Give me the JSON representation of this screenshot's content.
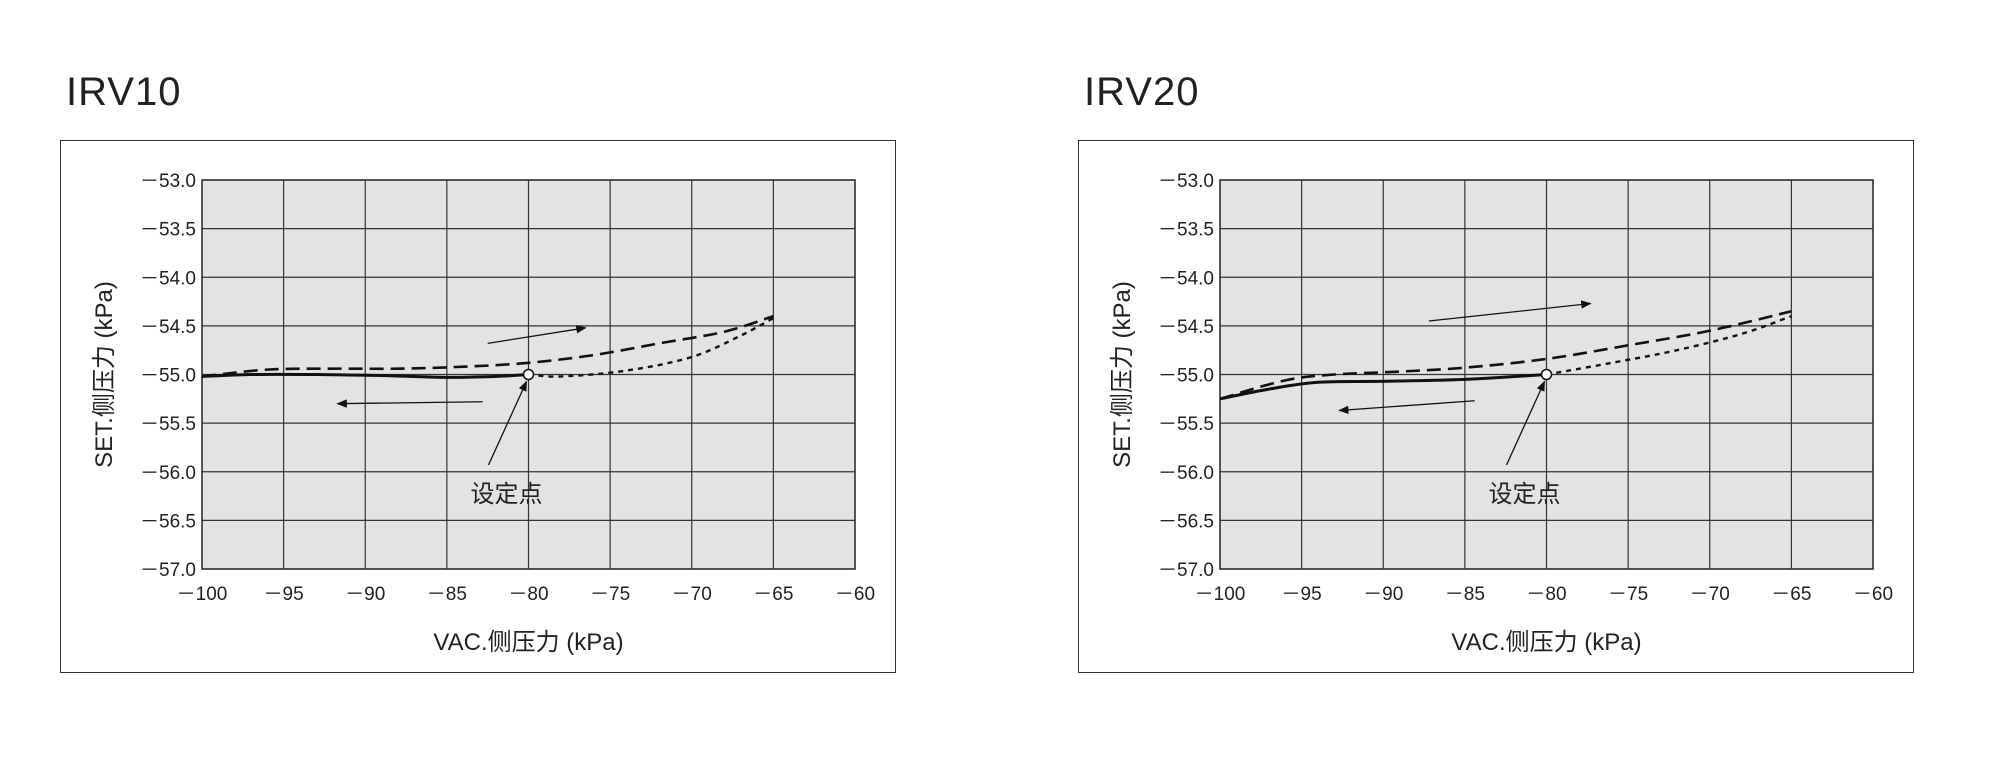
{
  "chart_data": [
    {
      "type": "line",
      "title": "IRV10",
      "xlabel": "VAC.侧压力 (kPa)",
      "ylabel": "SET.侧压力 (kPa)",
      "xlim": [
        -100,
        -60
      ],
      "ylim": [
        -57.0,
        -53.0
      ],
      "x_ticks": [
        "－100",
        "－95",
        "－90",
        "－85",
        "－80",
        "－75",
        "－70",
        "－65",
        "－60"
      ],
      "y_ticks": [
        "－53.0",
        "－53.5",
        "－54.0",
        "－54.5",
        "－55.0",
        "－55.5",
        "－56.0",
        "－56.5",
        "－57.0"
      ],
      "grid": true,
      "series": [
        {
          "style": "solid",
          "points": [
            [
              -100,
              -55.02
            ],
            [
              -97,
              -55.0
            ],
            [
              -93,
              -55.0
            ],
            [
              -89,
              -55.01
            ],
            [
              -85,
              -55.03
            ],
            [
              -82,
              -55.02
            ],
            [
              -80,
              -55.0
            ]
          ]
        },
        {
          "style": "dashed",
          "points": [
            [
              -100,
              -55.02
            ],
            [
              -96,
              -54.95
            ],
            [
              -92,
              -54.94
            ],
            [
              -88,
              -54.94
            ],
            [
              -84,
              -54.92
            ],
            [
              -80,
              -54.88
            ],
            [
              -76,
              -54.8
            ],
            [
              -72,
              -54.68
            ],
            [
              -68,
              -54.56
            ],
            [
              -65,
              -54.4
            ]
          ]
        },
        {
          "style": "dotted",
          "points": [
            [
              -80,
              -55.0
            ],
            [
              -78,
              -55.02
            ],
            [
              -74,
              -54.96
            ],
            [
              -70,
              -54.82
            ],
            [
              -67,
              -54.6
            ],
            [
              -65,
              -54.42
            ]
          ]
        }
      ],
      "annotations": {
        "setpoint": {
          "x": -80,
          "y": -55.0,
          "label": "设定点"
        },
        "arrow_increasing": {
          "from": [
            -82.5,
            -54.68
          ],
          "to": [
            -76.5,
            -54.52
          ]
        },
        "arrow_decreasing": {
          "from": [
            -82.8,
            -55.28
          ],
          "to": [
            -91.7,
            -55.3
          ]
        }
      }
    },
    {
      "type": "line",
      "title": "IRV20",
      "xlabel": "VAC.侧压力 (kPa)",
      "ylabel": "SET.侧压力 (kPa)",
      "xlim": [
        -100,
        -60
      ],
      "ylim": [
        -57.0,
        -53.0
      ],
      "x_ticks": [
        "－100",
        "－95",
        "－90",
        "－85",
        "－80",
        "－75",
        "－70",
        "－65",
        "－60"
      ],
      "y_ticks": [
        "－53.0",
        "－53.5",
        "－54.0",
        "－54.5",
        "－55.0",
        "－55.5",
        "－56.0",
        "－56.5",
        "－57.0"
      ],
      "grid": true,
      "series": [
        {
          "style": "solid",
          "points": [
            [
              -100,
              -55.25
            ],
            [
              -97,
              -55.15
            ],
            [
              -94,
              -55.08
            ],
            [
              -90,
              -55.07
            ],
            [
              -85,
              -55.05
            ],
            [
              -80,
              -55.0
            ]
          ]
        },
        {
          "style": "dashed",
          "points": [
            [
              -100,
              -55.25
            ],
            [
              -96,
              -55.06
            ],
            [
              -93,
              -55.0
            ],
            [
              -89,
              -54.97
            ],
            [
              -85,
              -54.93
            ],
            [
              -80,
              -54.84
            ],
            [
              -75,
              -54.7
            ],
            [
              -70,
              -54.55
            ],
            [
              -65,
              -54.35
            ]
          ]
        },
        {
          "style": "dotted",
          "points": [
            [
              -80,
              -55.0
            ],
            [
              -76,
              -54.88
            ],
            [
              -72,
              -54.75
            ],
            [
              -68,
              -54.58
            ],
            [
              -65,
              -54.4
            ]
          ]
        }
      ],
      "annotations": {
        "setpoint": {
          "x": -80,
          "y": -55.0,
          "label": "设定点"
        },
        "arrow_increasing": {
          "from": [
            -87.2,
            -54.45
          ],
          "to": [
            -77.3,
            -54.27
          ]
        },
        "arrow_decreasing": {
          "from": [
            -84.4,
            -55.27
          ],
          "to": [
            -92.7,
            -55.37
          ]
        }
      }
    }
  ]
}
